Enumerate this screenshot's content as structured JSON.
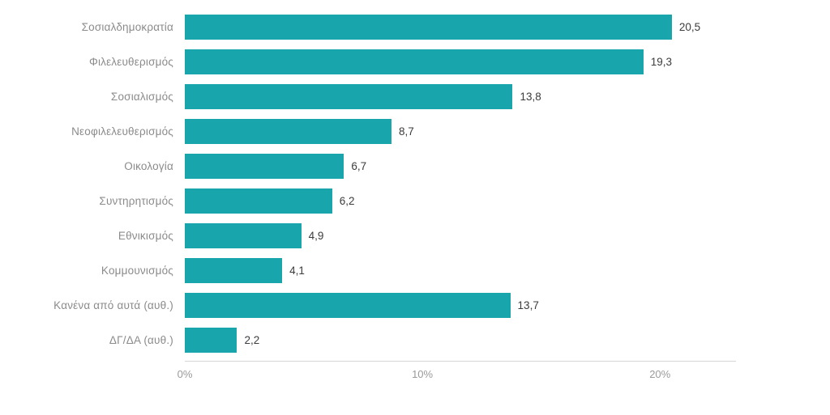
{
  "chart_data": {
    "type": "bar",
    "orientation": "horizontal",
    "title": "",
    "xlabel": "",
    "ylabel": "",
    "xlim": [
      0,
      23.2
    ],
    "grid": false,
    "bar_color": "#18a5ab",
    "categories": [
      "Σοσιαλδημοκρατία",
      "Φιλελευθερισμός",
      "Σοσιαλισμός",
      "Νεοφιλελευθερισμός",
      "Οικολογία",
      "Συντηρητισμός",
      "Εθνικισμός",
      "Κομμουνισμός",
      "Κανένα από αυτά (αυθ.)",
      "ΔΓ/ΔΑ (αυθ.)"
    ],
    "values": [
      20.5,
      19.3,
      13.8,
      8.7,
      6.7,
      6.2,
      4.9,
      4.1,
      13.7,
      2.2
    ],
    "value_labels": [
      "20,5",
      "19,3",
      "13,8",
      "8,7",
      "6,7",
      "6,2",
      "4,9",
      "4,1",
      "13,7",
      "2,2"
    ],
    "ticks": [
      {
        "value": 0,
        "label": "0%"
      },
      {
        "value": 10,
        "label": "10%"
      },
      {
        "value": 20,
        "label": "20%"
      }
    ]
  }
}
